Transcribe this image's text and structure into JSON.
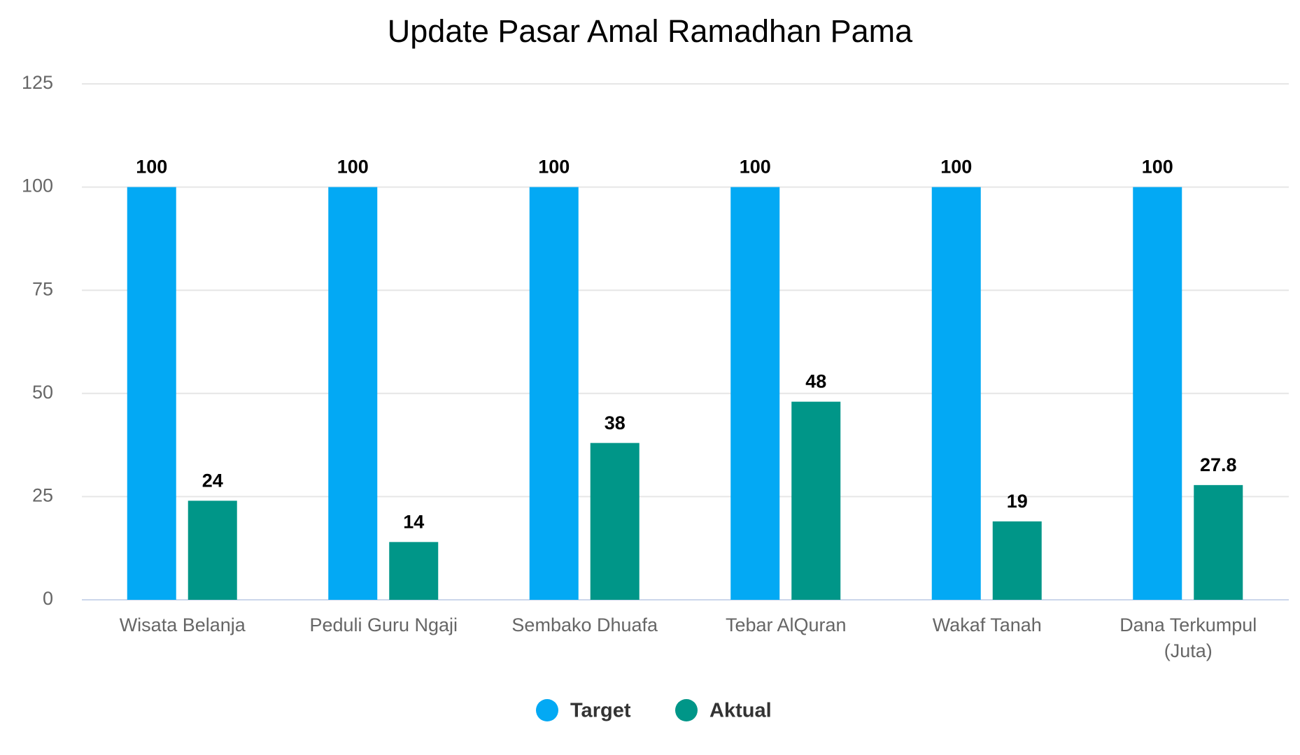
{
  "chart_data": {
    "type": "bar",
    "title": "Update Pasar Amal Ramadhan Pama",
    "categories": [
      "Wisata Belanja",
      "Peduli Guru Ngaji",
      "Sembako Dhuafa",
      "Tebar AlQuran",
      "Wakaf Tanah",
      "Dana Terkumpul (Juta)"
    ],
    "series": [
      {
        "name": "Target",
        "color": "#03a9f4",
        "values": [
          100,
          100,
          100,
          100,
          100,
          100
        ]
      },
      {
        "name": "Aktual",
        "color": "#009688",
        "values": [
          24,
          14,
          38,
          48,
          19,
          27.8
        ]
      }
    ],
    "ylim": [
      0,
      125
    ],
    "yticks": [
      0,
      25,
      50,
      75,
      100,
      125
    ],
    "grid": true,
    "legend": "bottom"
  }
}
